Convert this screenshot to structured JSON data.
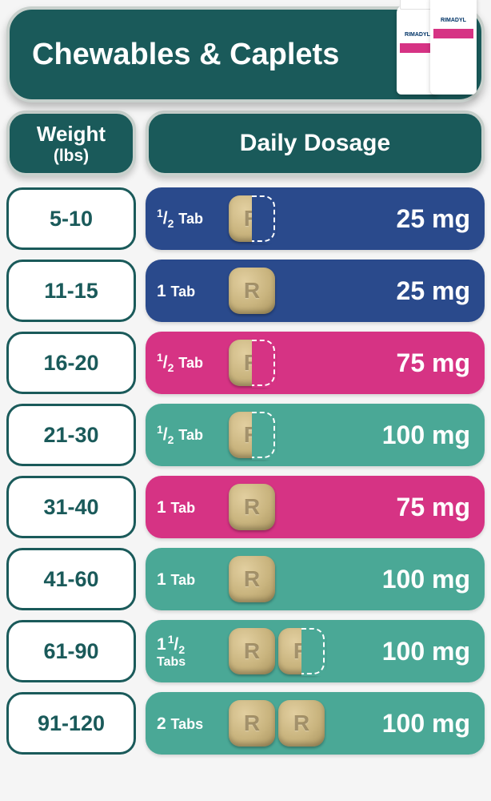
{
  "header": {
    "title": "Chewables & Caplets",
    "bottle_label": "RIMADYL",
    "bg_color": "#1a5a5a",
    "border_color": "#c8d0cc"
  },
  "columns": {
    "weight_line1": "Weight",
    "weight_line2": "(lbs)",
    "dosage": "Daily Dosage"
  },
  "colors": {
    "blue": "#2a4a8c",
    "pink": "#d63384",
    "teal": "#4aa896",
    "weight_text": "#1a5a5a",
    "white": "#ffffff"
  },
  "rows": [
    {
      "weight": "5-10",
      "tab_html": "<sup>1</sup>/<sub>2</sub> <span class='word'>Tab</span>",
      "tablets": [
        "half"
      ],
      "mg": "25 mg",
      "color": "blue"
    },
    {
      "weight": "11-15",
      "tab_html": "1 <span class='word'>Tab</span>",
      "tablets": [
        "full"
      ],
      "mg": "25 mg",
      "color": "blue"
    },
    {
      "weight": "16-20",
      "tab_html": "<sup>1</sup>/<sub>2</sub> <span class='word'>Tab</span>",
      "tablets": [
        "half"
      ],
      "mg": "75 mg",
      "color": "pink"
    },
    {
      "weight": "21-30",
      "tab_html": "<sup>1</sup>/<sub>2</sub> <span class='word'>Tab</span>",
      "tablets": [
        "half"
      ],
      "mg": "100 mg",
      "color": "teal"
    },
    {
      "weight": "31-40",
      "tab_html": "1 <span class='word'>Tab</span>",
      "tablets": [
        "full"
      ],
      "mg": "75 mg",
      "color": "pink"
    },
    {
      "weight": "41-60",
      "tab_html": "1 <span class='word'>Tab</span>",
      "tablets": [
        "full"
      ],
      "mg": "100 mg",
      "color": "teal"
    },
    {
      "weight": "61-90",
      "tab_html": "<span class='frac-whole'>1</span><sup>1</sup>/<sub>2</sub><span class='word'>Tabs</span>",
      "twoline": true,
      "tablets": [
        "full",
        "half"
      ],
      "mg": "100 mg",
      "color": "teal"
    },
    {
      "weight": "91-120",
      "tab_html": "2 <span class='word'>Tabs</span>",
      "tablets": [
        "full",
        "full"
      ],
      "mg": "100 mg",
      "color": "teal"
    }
  ]
}
